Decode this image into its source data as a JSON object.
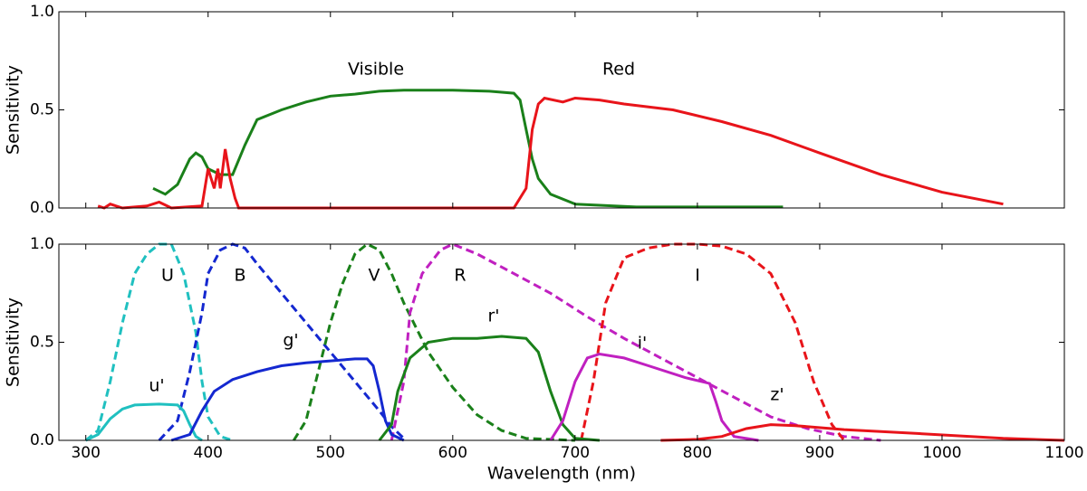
{
  "chart_data": [
    {
      "type": "line",
      "ylabel": "Sensitivity",
      "xlim": [
        278,
        1100
      ],
      "ylim": [
        0,
        1
      ],
      "yticks": [
        {
          "value": 0,
          "label": "0.0"
        },
        {
          "value": 0.5,
          "label": "0.5"
        },
        {
          "value": 1,
          "label": "1.0"
        }
      ],
      "series": [
        {
          "name": "Visible",
          "color": "#1a801a",
          "dash": false,
          "x": [
            355,
            365,
            375,
            385,
            390,
            395,
            400,
            410,
            420,
            430,
            440,
            460,
            480,
            500,
            520,
            540,
            560,
            600,
            630,
            650,
            655,
            660,
            665,
            670,
            680,
            700,
            750,
            870
          ],
          "values": [
            0.1,
            0.07,
            0.12,
            0.25,
            0.28,
            0.26,
            0.2,
            0.17,
            0.17,
            0.32,
            0.45,
            0.5,
            0.54,
            0.57,
            0.58,
            0.595,
            0.6,
            0.6,
            0.595,
            0.585,
            0.55,
            0.4,
            0.25,
            0.15,
            0.07,
            0.02,
            0.005,
            0.005
          ]
        },
        {
          "name": "Red",
          "color": "#e8141a",
          "dash": false,
          "x": [
            310,
            315,
            320,
            330,
            350,
            360,
            370,
            395,
            400,
            405,
            408,
            410,
            414,
            418,
            422,
            425,
            650,
            660,
            665,
            670,
            675,
            690,
            700,
            720,
            740,
            780,
            820,
            860,
            900,
            950,
            1000,
            1050
          ],
          "values": [
            0.01,
            0.0,
            0.02,
            0.0,
            0.01,
            0.03,
            0.0,
            0.01,
            0.2,
            0.1,
            0.2,
            0.1,
            0.3,
            0.15,
            0.05,
            0.0,
            0.0,
            0.1,
            0.4,
            0.53,
            0.56,
            0.54,
            0.56,
            0.55,
            0.53,
            0.5,
            0.44,
            0.37,
            0.28,
            0.17,
            0.08,
            0.02
          ]
        }
      ]
    },
    {
      "type": "line",
      "ylabel": "Sensitivity",
      "xlabel": "Wavelength (nm)",
      "xlim": [
        278,
        1100
      ],
      "ylim": [
        0,
        1
      ],
      "xticks": [
        300,
        400,
        500,
        600,
        700,
        800,
        900,
        1000,
        1100
      ],
      "yticks": [
        {
          "value": 0,
          "label": "0.0"
        },
        {
          "value": 0.5,
          "label": "0.5"
        },
        {
          "value": 1,
          "label": "1.0"
        }
      ],
      "series": [
        {
          "name": "U",
          "color": "#20c0c0",
          "dash": true,
          "x": [
            300,
            310,
            320,
            330,
            340,
            350,
            360,
            370,
            380,
            390,
            395,
            400,
            410,
            420
          ],
          "values": [
            0.0,
            0.05,
            0.3,
            0.6,
            0.85,
            0.95,
            1.0,
            1.0,
            0.85,
            0.55,
            0.3,
            0.12,
            0.02,
            0.0
          ]
        },
        {
          "name": "B",
          "color": "#1428d0",
          "dash": true,
          "x": [
            360,
            375,
            385,
            395,
            400,
            410,
            420,
            430,
            440,
            460,
            480,
            500,
            520,
            540,
            550,
            560
          ],
          "values": [
            0,
            0.1,
            0.35,
            0.65,
            0.85,
            0.97,
            1.0,
            0.98,
            0.9,
            0.75,
            0.6,
            0.45,
            0.3,
            0.15,
            0.07,
            0.01
          ]
        },
        {
          "name": "V",
          "color": "#1a801a",
          "dash": true,
          "x": [
            470,
            480,
            490,
            500,
            510,
            520,
            530,
            540,
            550,
            560,
            580,
            600,
            620,
            640,
            660,
            700
          ],
          "values": [
            0,
            0.1,
            0.35,
            0.6,
            0.8,
            0.95,
            1.0,
            0.97,
            0.85,
            0.7,
            0.45,
            0.27,
            0.13,
            0.05,
            0.01,
            0.0
          ]
        },
        {
          "name": "R",
          "color": "#c020c0",
          "dash": true,
          "x": [
            550,
            560,
            565,
            575,
            590,
            600,
            620,
            650,
            680,
            710,
            740,
            770,
            800,
            830,
            860,
            890,
            920,
            950
          ],
          "values": [
            0,
            0.3,
            0.65,
            0.85,
            0.97,
            1.0,
            0.95,
            0.85,
            0.75,
            0.63,
            0.52,
            0.42,
            0.32,
            0.22,
            0.12,
            0.06,
            0.02,
            0.0
          ]
        },
        {
          "name": "I",
          "color": "#e8141a",
          "dash": true,
          "x": [
            705,
            715,
            725,
            740,
            760,
            780,
            800,
            820,
            840,
            860,
            880,
            895,
            910,
            920
          ],
          "values": [
            0,
            0.3,
            0.7,
            0.93,
            0.98,
            1.0,
            1.0,
            0.99,
            0.95,
            0.85,
            0.6,
            0.3,
            0.08,
            0.0
          ]
        },
        {
          "name": "u'",
          "color": "#20c0c0",
          "dash": false,
          "x": [
            300,
            310,
            320,
            330,
            340,
            360,
            375,
            380,
            385,
            390,
            395
          ],
          "values": [
            0,
            0.03,
            0.11,
            0.16,
            0.18,
            0.185,
            0.18,
            0.15,
            0.08,
            0.02,
            0.0
          ]
        },
        {
          "name": "g'",
          "color": "#1428d0",
          "dash": false,
          "x": [
            370,
            385,
            395,
            405,
            420,
            440,
            460,
            480,
            500,
            520,
            530,
            535,
            540,
            545,
            550,
            560
          ],
          "values": [
            0,
            0.03,
            0.15,
            0.25,
            0.31,
            0.35,
            0.38,
            0.395,
            0.405,
            0.415,
            0.415,
            0.38,
            0.25,
            0.1,
            0.03,
            0.0
          ]
        },
        {
          "name": "r'",
          "color": "#1a801a",
          "dash": false,
          "x": [
            540,
            550,
            555,
            565,
            580,
            600,
            620,
            640,
            660,
            670,
            680,
            690,
            700,
            720
          ],
          "values": [
            0,
            0.08,
            0.25,
            0.42,
            0.5,
            0.52,
            0.52,
            0.53,
            0.52,
            0.45,
            0.25,
            0.08,
            0.01,
            0.0
          ]
        },
        {
          "name": "i'",
          "color": "#c020c0",
          "dash": false,
          "x": [
            680,
            690,
            700,
            710,
            720,
            740,
            760,
            790,
            810,
            815,
            820,
            830,
            850
          ],
          "values": [
            0,
            0.1,
            0.3,
            0.42,
            0.44,
            0.42,
            0.38,
            0.32,
            0.29,
            0.2,
            0.1,
            0.02,
            0.0
          ]
        },
        {
          "name": "z'",
          "color": "#e8141a",
          "dash": false,
          "x": [
            770,
            800,
            820,
            840,
            860,
            880,
            920,
            980,
            1050,
            1100
          ],
          "values": [
            0.0,
            0.005,
            0.02,
            0.06,
            0.08,
            0.075,
            0.055,
            0.035,
            0.01,
            0.0
          ]
        }
      ]
    }
  ]
}
